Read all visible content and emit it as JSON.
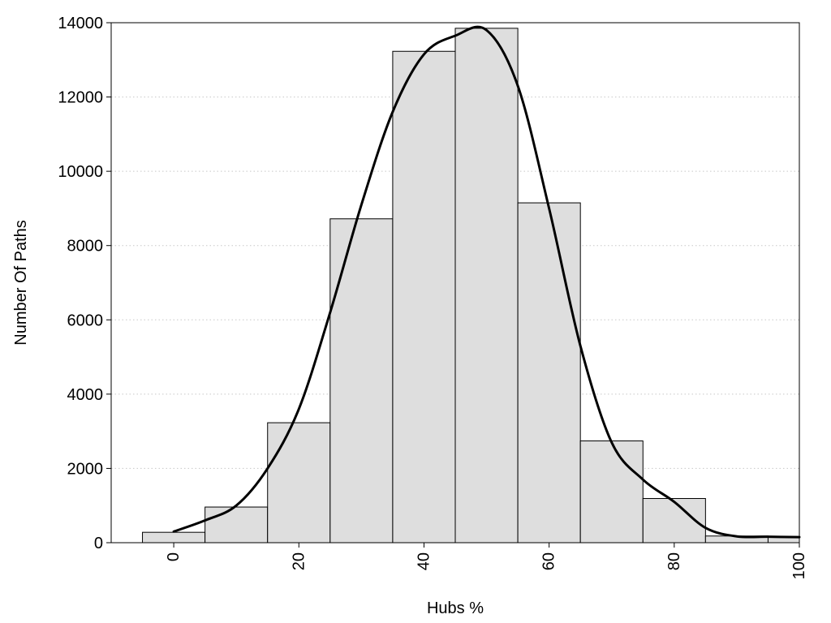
{
  "chart_data": {
    "type": "bar",
    "title": "",
    "xlabel": "Hubs %",
    "ylabel": "Number Of Paths",
    "bin_centers": [
      0,
      10,
      20,
      30,
      40,
      50,
      60,
      70,
      80,
      90,
      100
    ],
    "bin_width": 10,
    "values": [
      280,
      960,
      3230,
      8720,
      13230,
      13850,
      9150,
      2740,
      1190,
      180,
      150
    ],
    "smooth_curve": {
      "x": [
        0,
        5,
        10,
        15,
        20,
        25,
        30,
        35,
        40,
        45,
        50,
        55,
        60,
        65,
        70,
        75,
        80,
        85,
        90,
        95,
        100
      ],
      "y": [
        300,
        600,
        1000,
        2000,
        3600,
        6200,
        9100,
        11600,
        13150,
        13650,
        13800,
        12300,
        9000,
        5300,
        2700,
        1700,
        1100,
        400,
        170,
        160,
        150
      ]
    },
    "xlim": [
      -10,
      100
    ],
    "ylim": [
      0,
      14000
    ],
    "x_ticks": [
      "0",
      "20",
      "40",
      "60",
      "80",
      "100"
    ],
    "x_tick_values": [
      0,
      20,
      40,
      60,
      80,
      100
    ],
    "y_ticks": [
      "0",
      "2000",
      "4000",
      "6000",
      "8000",
      "10000",
      "12000",
      "14000"
    ],
    "y_tick_values": [
      0,
      2000,
      4000,
      6000,
      8000,
      10000,
      12000,
      14000
    ],
    "grid": "horizontal dotted",
    "legend": "none",
    "colors": {
      "bar_fill": "#dedede",
      "bar_stroke": "#000000",
      "curve": "#000000",
      "grid": "#c8c8c8"
    }
  }
}
